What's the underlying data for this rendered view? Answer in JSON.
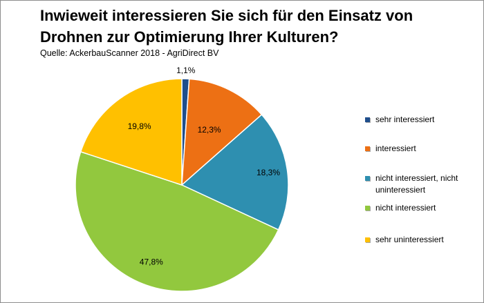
{
  "title": "Inwieweit interessieren Sie sich für den Einsatz von Drohnen zur Optimierung Ihrer Kulturen?",
  "source": "Quelle: AckerbauScanner 2018 - AgriDirect BV",
  "chart_data": {
    "type": "pie",
    "title": "Inwieweit interessieren Sie sich für den Einsatz von Drohnen zur Optimierung Ihrer Kulturen?",
    "categories": [
      "sehr interessiert",
      "interessiert",
      "nicht interessiert, nicht uninteressiert",
      "nicht interessiert",
      "sehr uninteressiert"
    ],
    "values": [
      1.1,
      12.3,
      18.3,
      47.8,
      19.8
    ],
    "labels": [
      "1,1%",
      "12,3%",
      "18,3%",
      "47,8%",
      "19,8%"
    ],
    "colors": [
      "#1f4e8c",
      "#ed7014",
      "#2e8fb0",
      "#92c83e",
      "#ffc000"
    ],
    "legend_position": "right"
  }
}
